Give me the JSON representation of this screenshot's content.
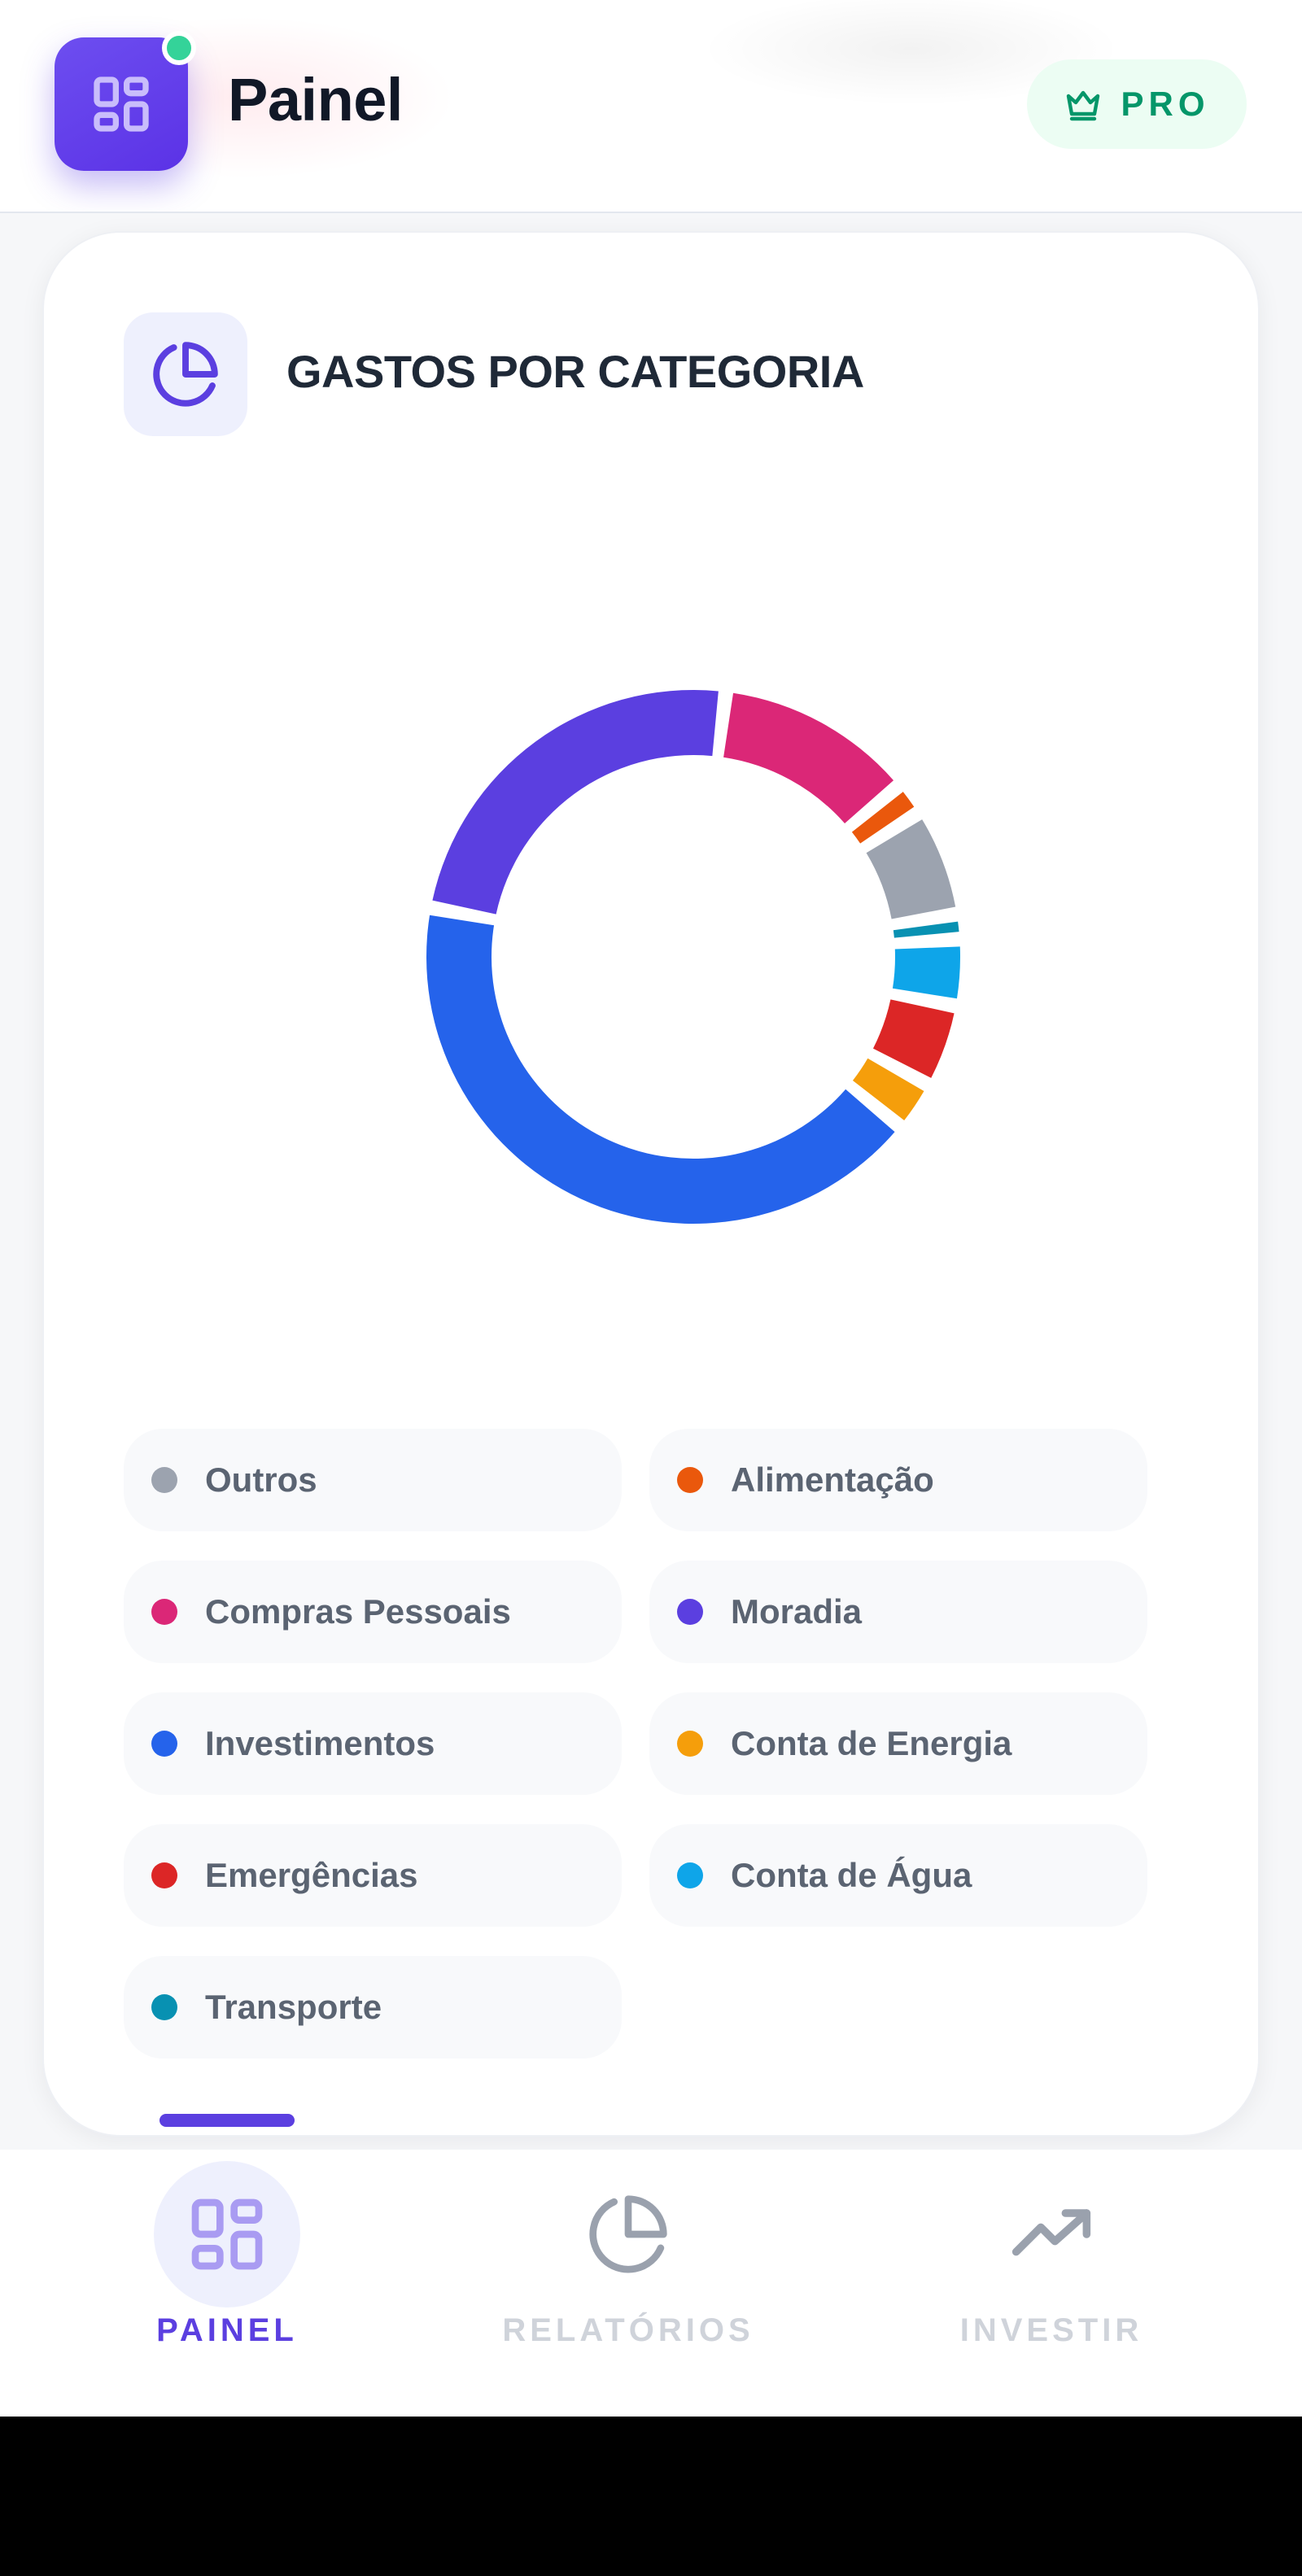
{
  "header": {
    "title": "Painel",
    "app_icon": "dashboard-grid-icon",
    "status_dot_color": "#34d399",
    "badge": {
      "icon": "crown-icon",
      "label": "PRO"
    }
  },
  "card": {
    "icon": "pie-chart-icon",
    "title": "GASTOS POR CATEGORIA"
  },
  "chart_data": {
    "type": "pie",
    "variant": "donut",
    "title": "GASTOS POR CATEGORIA",
    "slices": [
      {
        "label": "Compras Pessoais",
        "value": 12,
        "color": "#db2777"
      },
      {
        "label": "Alimentação",
        "value": 2,
        "color": "#ea580c"
      },
      {
        "label": "Outros",
        "value": 6.5,
        "color": "#9ca3af"
      },
      {
        "label": "Transporte",
        "value": 1.5,
        "color": "#0891b2"
      },
      {
        "label": "Conta de Água",
        "value": 4,
        "color": "#0ea5e9"
      },
      {
        "label": "Emergências",
        "value": 5,
        "color": "#dc2626"
      },
      {
        "label": "Conta de Energia",
        "value": 3,
        "color": "#f59e0b"
      },
      {
        "label": "Investimentos",
        "value": 42,
        "color": "#2563eb"
      },
      {
        "label": "Moradia",
        "value": 24,
        "color": "#5b3fe0"
      }
    ],
    "legend": [
      {
        "label": "Outros",
        "color": "#9ca3af"
      },
      {
        "label": "Alimentação",
        "color": "#ea580c"
      },
      {
        "label": "Compras Pessoais",
        "color": "#db2777"
      },
      {
        "label": "Moradia",
        "color": "#5b3fe0"
      },
      {
        "label": "Investimentos",
        "color": "#2563eb"
      },
      {
        "label": "Conta de Energia",
        "color": "#f59e0b"
      },
      {
        "label": "Emergências",
        "color": "#dc2626"
      },
      {
        "label": "Conta de Água",
        "color": "#0ea5e9"
      },
      {
        "label": "Transporte",
        "color": "#0891b2"
      }
    ],
    "legend_placement": "bottom"
  },
  "bottom_nav": {
    "items": [
      {
        "label": "PAINEL",
        "icon": "dashboard-grid-icon",
        "active": true
      },
      {
        "label": "RELATÓRIOS",
        "icon": "pie-chart-icon",
        "active": false
      },
      {
        "label": "INVESTIR",
        "icon": "trending-up-icon",
        "active": false
      }
    ]
  },
  "colors": {
    "accent": "#5b3fe0",
    "pro_green": "#059669",
    "inactive_nav": "#cfd3da"
  }
}
